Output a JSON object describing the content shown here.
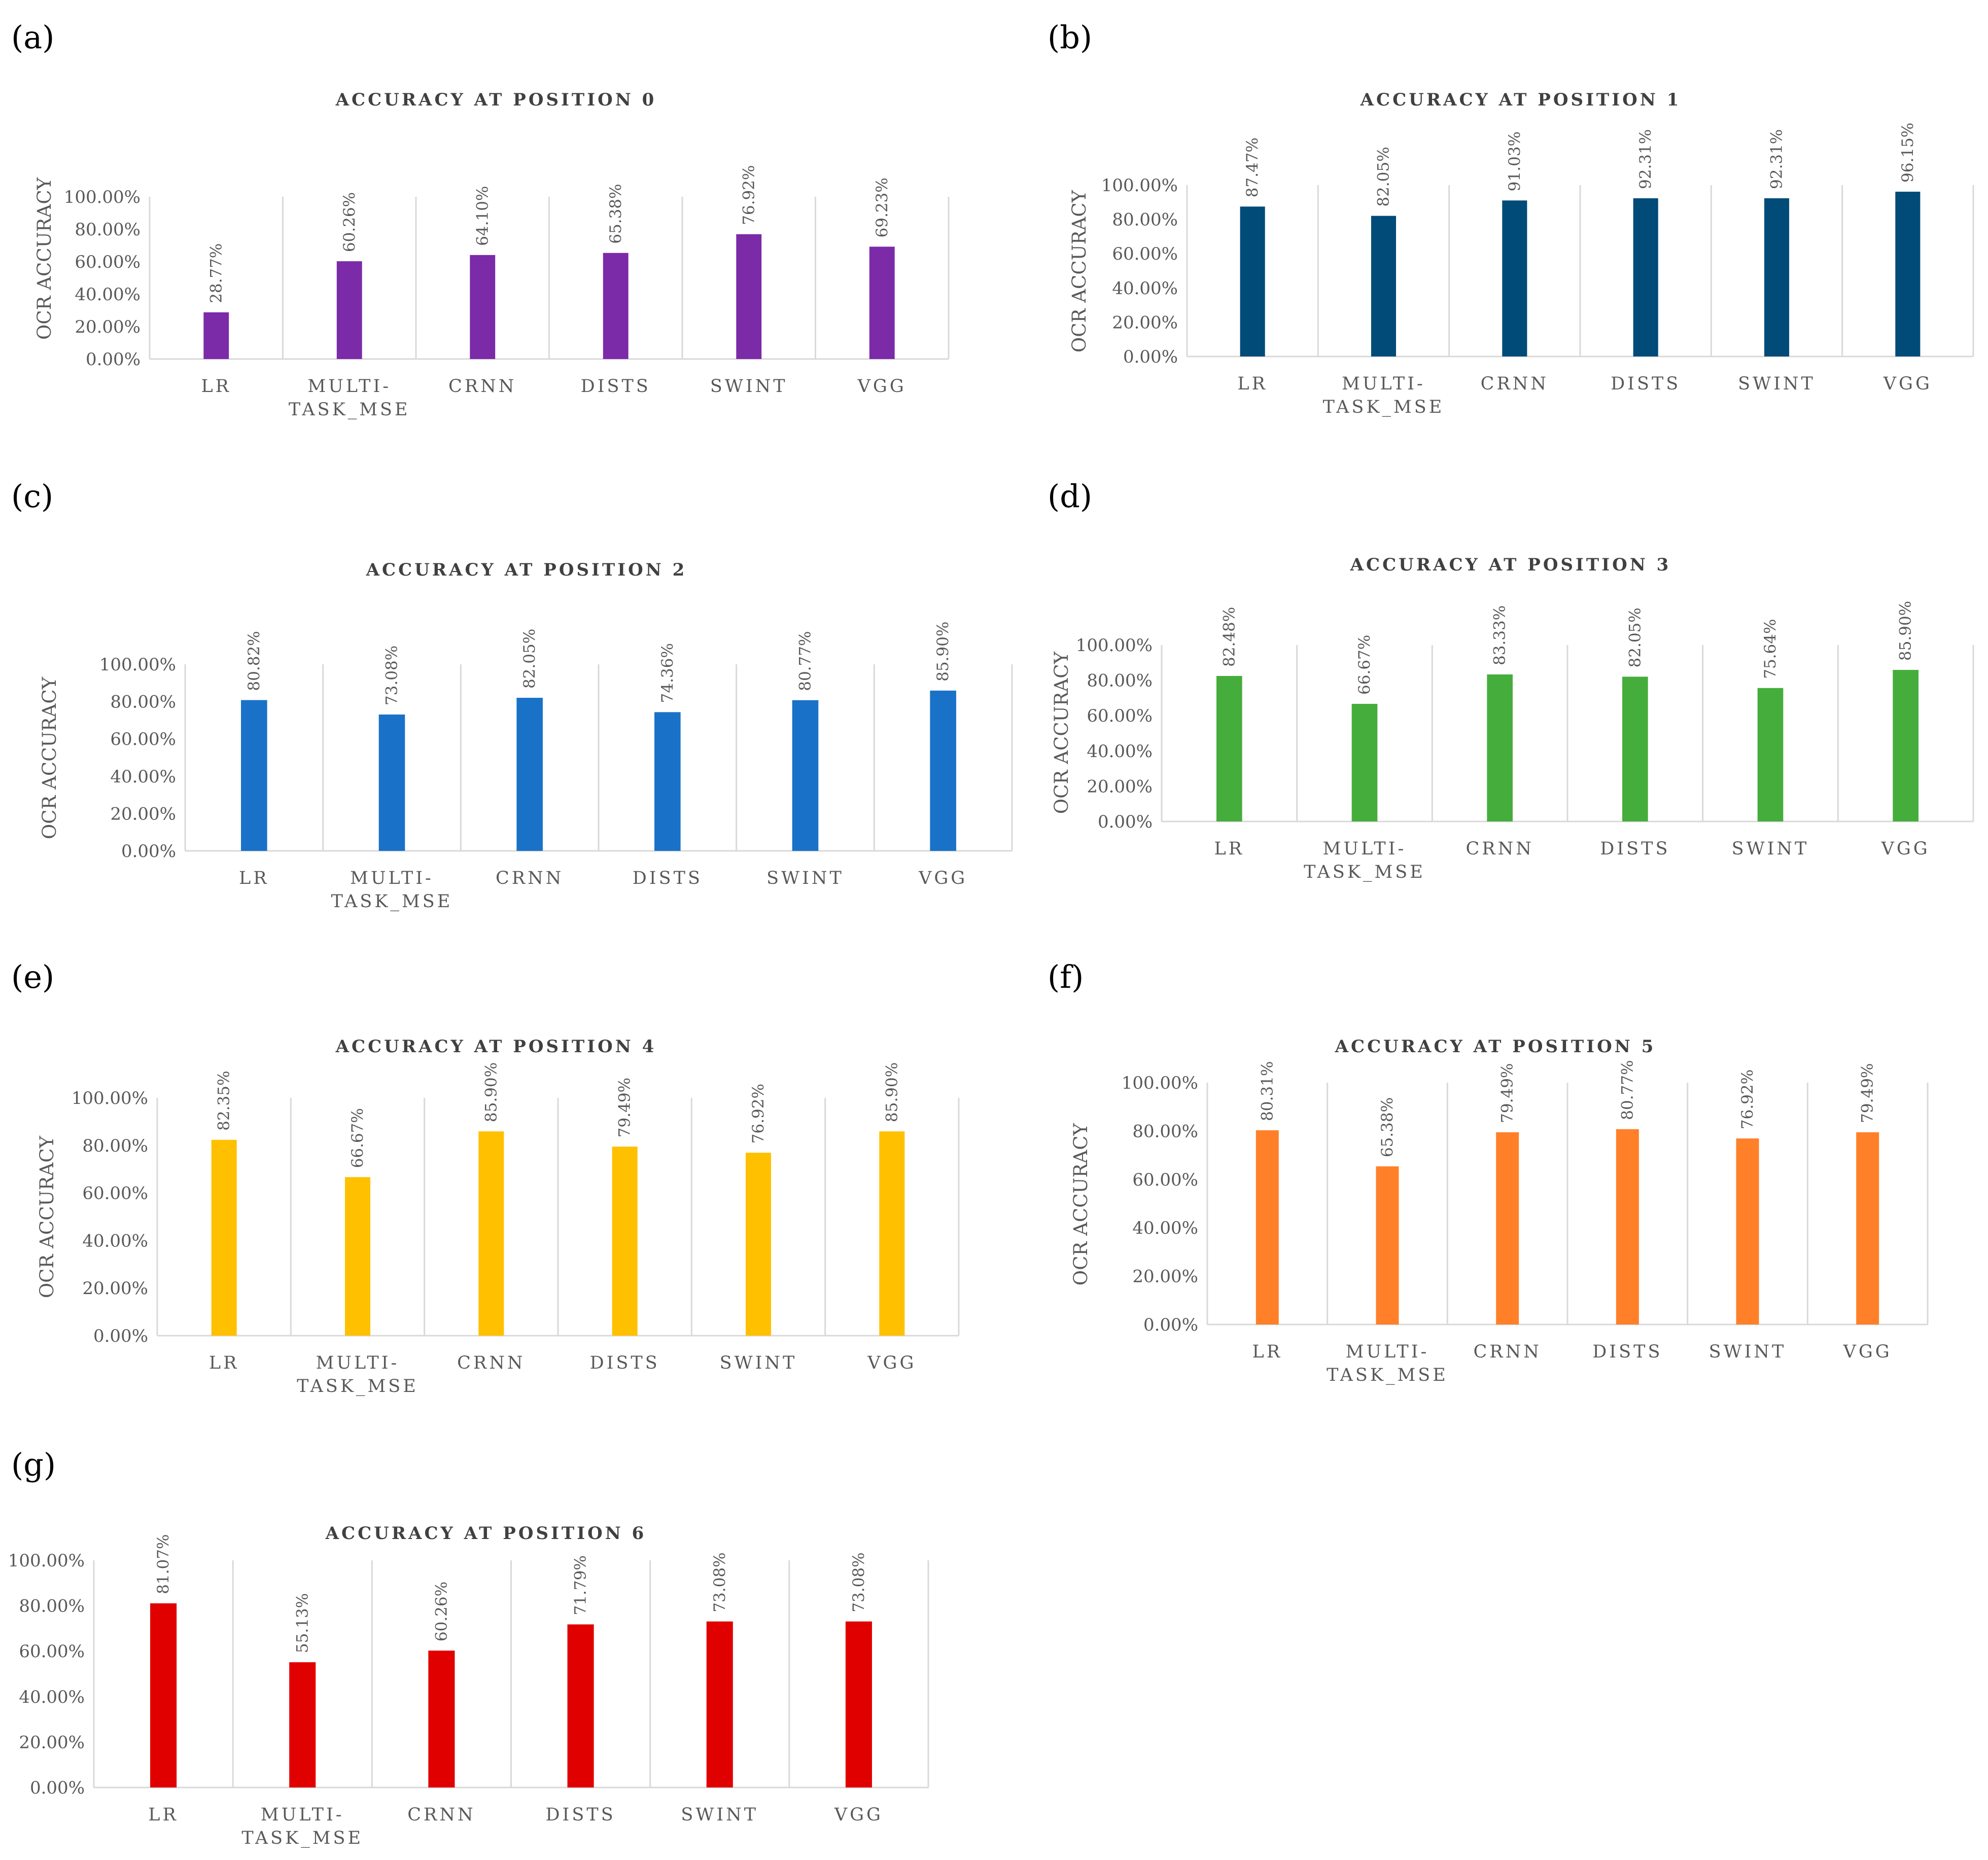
{
  "chart_data": [
    {
      "panel": "(a)",
      "type": "bar",
      "title": "ACCURACY AT POSITION 0",
      "ylabel": "OCR ACCURACY",
      "xlabel": "",
      "categories": [
        "LR",
        "MULTI-\nTASK_MSE",
        "CRNN",
        "DISTS",
        "SWINT",
        "VGG"
      ],
      "values": [
        28.77,
        60.26,
        64.1,
        65.38,
        76.92,
        69.23
      ],
      "data_labels": [
        "28.77%",
        "60.26%",
        "64.10%",
        "65.38%",
        "76.92%",
        "69.23%"
      ],
      "ylim": [
        0,
        100
      ],
      "yticks": [
        "0.00%",
        "20.00%",
        "40.00%",
        "60.00%",
        "80.00%",
        "100.00%"
      ],
      "color": "#7b2aa8",
      "grid": "vertical separators",
      "legend": "none"
    },
    {
      "panel": "(b)",
      "type": "bar",
      "title": "ACCURACY AT POSITION 1",
      "ylabel": "OCR ACCURACY",
      "xlabel": "",
      "categories": [
        "LR",
        "MULTI-\nTASK_MSE",
        "CRNN",
        "DISTS",
        "SWINT",
        "VGG"
      ],
      "values": [
        87.47,
        82.05,
        91.03,
        92.31,
        92.31,
        96.15
      ],
      "data_labels": [
        "87.47%",
        "82.05%",
        "91.03%",
        "92.31%",
        "92.31%",
        "96.15%"
      ],
      "ylim": [
        0,
        100
      ],
      "yticks": [
        "0.00%",
        "20.00%",
        "40.00%",
        "60.00%",
        "80.00%",
        "100.00%"
      ],
      "color": "#004b78",
      "grid": "vertical separators",
      "legend": "none"
    },
    {
      "panel": "(c)",
      "type": "bar",
      "title": "ACCURACY AT POSITION 2",
      "ylabel": "OCR ACCURACY",
      "xlabel": "",
      "categories": [
        "LR",
        "MULTI-\nTASK_MSE",
        "CRNN",
        "DISTS",
        "SWINT",
        "VGG"
      ],
      "values": [
        80.82,
        73.08,
        82.05,
        74.36,
        80.77,
        85.9
      ],
      "data_labels": [
        "80.82%",
        "73.08%",
        "82.05%",
        "74.36%",
        "80.77%",
        "85.90%"
      ],
      "ylim": [
        0,
        100
      ],
      "yticks": [
        "0.00%",
        "20.00%",
        "40.00%",
        "60.00%",
        "80.00%",
        "100.00%"
      ],
      "color": "#1a72c8",
      "grid": "vertical separators",
      "legend": "none"
    },
    {
      "panel": "(d)",
      "type": "bar",
      "title": "ACCURACY AT POSITION 3",
      "ylabel": "OCR ACCURACY",
      "xlabel": "",
      "categories": [
        "LR",
        "MULTI-\nTASK_MSE",
        "CRNN",
        "DISTS",
        "SWINT",
        "VGG"
      ],
      "values": [
        82.48,
        66.67,
        83.33,
        82.05,
        75.64,
        85.9
      ],
      "data_labels": [
        "82.48%",
        "66.67%",
        "83.33%",
        "82.05%",
        "75.64%",
        "85.90%"
      ],
      "ylim": [
        0,
        100
      ],
      "yticks": [
        "0.00%",
        "20.00%",
        "40.00%",
        "60.00%",
        "80.00%",
        "100.00%"
      ],
      "color": "#45ad3c",
      "grid": "vertical separators",
      "legend": "none"
    },
    {
      "panel": "(e)",
      "type": "bar",
      "title": "ACCURACY AT POSITION 4",
      "ylabel": "OCR ACCURACY",
      "xlabel": "",
      "categories": [
        "LR",
        "MULTI-\nTASK_MSE",
        "CRNN",
        "DISTS",
        "SWINT",
        "VGG"
      ],
      "values": [
        82.35,
        66.67,
        85.9,
        79.49,
        76.92,
        85.9
      ],
      "data_labels": [
        "82.35%",
        "66.67%",
        "85.90%",
        "79.49%",
        "76.92%",
        "85.90%"
      ],
      "ylim": [
        0,
        100
      ],
      "yticks": [
        "0.00%",
        "20.00%",
        "40.00%",
        "60.00%",
        "80.00%",
        "100.00%"
      ],
      "color": "#ffc000",
      "grid": "vertical separators",
      "legend": "none"
    },
    {
      "panel": "(f)",
      "type": "bar",
      "title": "ACCURACY AT POSITION 5",
      "ylabel": "OCR ACCURACY",
      "xlabel": "",
      "categories": [
        "LR",
        "MULTI-\nTASK_MSE",
        "CRNN",
        "DISTS",
        "SWINT",
        "VGG"
      ],
      "values": [
        80.31,
        65.38,
        79.49,
        80.77,
        76.92,
        79.49
      ],
      "data_labels": [
        "80.31%",
        "65.38%",
        "79.49%",
        "80.77%",
        "76.92%",
        "79.49%"
      ],
      "ylim": [
        0,
        100
      ],
      "yticks": [
        "0.00%",
        "20.00%",
        "40.00%",
        "60.00%",
        "80.00%",
        "100.00%"
      ],
      "color": "#ff8029",
      "grid": "vertical separators",
      "legend": "none"
    },
    {
      "panel": "(g)",
      "type": "bar",
      "title": "ACCURACY AT POSITION 6",
      "ylabel": "",
      "xlabel": "",
      "categories": [
        "LR",
        "MULTI-\nTASK_MSE",
        "CRNN",
        "DISTS",
        "SWINT",
        "VGG"
      ],
      "values": [
        81.07,
        55.13,
        60.26,
        71.79,
        73.08,
        73.08
      ],
      "data_labels": [
        "81.07%",
        "55.13%",
        "60.26%",
        "71.79%",
        "73.08%",
        "73.08%"
      ],
      "ylim": [
        0,
        100
      ],
      "yticks": [
        "0.00%",
        "20.00%",
        "40.00%",
        "60.00%",
        "80.00%",
        "100.00%"
      ],
      "color": "#e00000",
      "grid": "vertical separators",
      "legend": "none"
    }
  ]
}
